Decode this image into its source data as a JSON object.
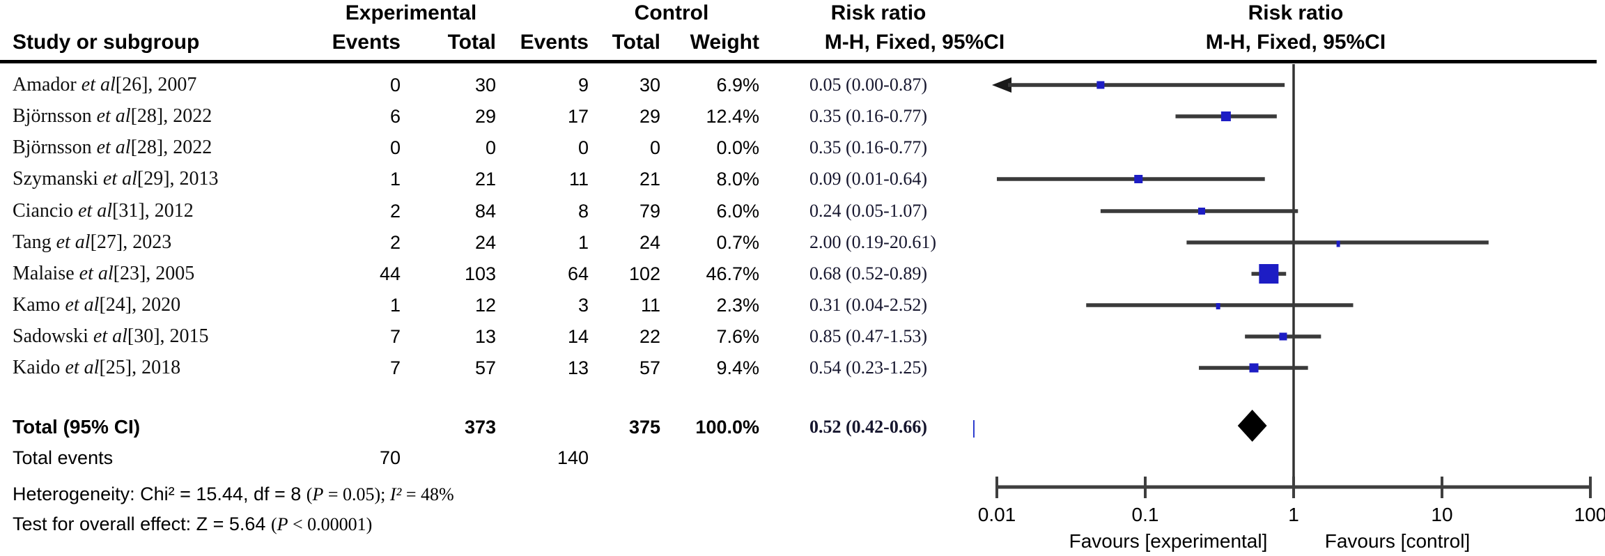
{
  "header": {
    "group_experimental": "Experimental",
    "group_control": "Control",
    "risk_ratio_col_title": "Risk ratio",
    "risk_ratio_plot_title": "Risk ratio",
    "method_col_subtitle": "M-H, Fixed, 95%CI",
    "method_plot_subtitle": "M-H, Fixed, 95%CI",
    "study_col": "Study or subgroup",
    "events_col_exp": "Events",
    "total_col_exp": "Total",
    "events_col_ctrl": "Events",
    "total_col_ctrl": "Total",
    "weight_col": "Weight"
  },
  "chart_data": {
    "type": "forest",
    "effect_measure": "Risk ratio, M-H, Fixed, 95% CI",
    "studies": [
      {
        "study": "Amador",
        "etal": "et al",
        "ref": "[26]",
        "year": "2007",
        "exp_events": "0",
        "exp_total": "30",
        "ctrl_events": "9",
        "ctrl_total": "30",
        "weight": "6.9%",
        "rr_label": "0.05 (0.00-0.87)",
        "rr": 0.05,
        "ci_low": 0.0,
        "ci_high": 0.87,
        "plotted": true
      },
      {
        "study": "Björnsson",
        "etal": "et al",
        "ref": "[28]",
        "year": "2022",
        "exp_events": "6",
        "exp_total": "29",
        "ctrl_events": "17",
        "ctrl_total": "29",
        "weight": "12.4%",
        "rr_label": "0.35 (0.16-0.77)",
        "rr": 0.35,
        "ci_low": 0.16,
        "ci_high": 0.77,
        "plotted": true
      },
      {
        "study": "Björnsson",
        "etal": "et al",
        "ref": "[28]",
        "year": "2022",
        "exp_events": "0",
        "exp_total": "0",
        "ctrl_events": "0",
        "ctrl_total": "0",
        "weight": "0.0%",
        "rr_label": "0.35 (0.16-0.77)",
        "rr": 0.35,
        "ci_low": 0.16,
        "ci_high": 0.77,
        "plotted": false
      },
      {
        "study": "Szymanski",
        "etal": "et al",
        "ref": "[29]",
        "year": "2013",
        "exp_events": "1",
        "exp_total": "21",
        "ctrl_events": "11",
        "ctrl_total": "21",
        "weight": "8.0%",
        "rr_label": "0.09 (0.01-0.64)",
        "rr": 0.09,
        "ci_low": 0.01,
        "ci_high": 0.64,
        "plotted": true
      },
      {
        "study": "Ciancio",
        "etal": "et al",
        "ref": "[31]",
        "year": "2012",
        "exp_events": "2",
        "exp_total": "84",
        "ctrl_events": "8",
        "ctrl_total": "79",
        "weight": "6.0%",
        "rr_label": "0.24 (0.05-1.07)",
        "rr": 0.24,
        "ci_low": 0.05,
        "ci_high": 1.07,
        "plotted": true
      },
      {
        "study": "Tang",
        "etal": "et al",
        "ref": "[27]",
        "year": "2023",
        "exp_events": "2",
        "exp_total": "24",
        "ctrl_events": "1",
        "ctrl_total": "24",
        "weight": "0.7%",
        "rr_label": "2.00 (0.19-20.61)",
        "rr": 2.0,
        "ci_low": 0.19,
        "ci_high": 20.61,
        "plotted": true
      },
      {
        "study": "Malaise",
        "etal": "et al",
        "ref": "[23]",
        "year": "2005",
        "exp_events": "44",
        "exp_total": "103",
        "ctrl_events": "64",
        "ctrl_total": "102",
        "weight": "46.7%",
        "rr_label": "0.68 (0.52-0.89)",
        "rr": 0.68,
        "ci_low": 0.52,
        "ci_high": 0.89,
        "plotted": true
      },
      {
        "study": "Kamo",
        "etal": "et al",
        "ref": "[24]",
        "year": "2020",
        "exp_events": "1",
        "exp_total": "12",
        "ctrl_events": "3",
        "ctrl_total": "11",
        "weight": "2.3%",
        "rr_label": "0.31 (0.04-2.52)",
        "rr": 0.31,
        "ci_low": 0.04,
        "ci_high": 2.52,
        "plotted": true
      },
      {
        "study": "Sadowski",
        "etal": "et al",
        "ref": "[30]",
        "year": "2015",
        "exp_events": "7",
        "exp_total": "13",
        "ctrl_events": "14",
        "ctrl_total": "22",
        "weight": "7.6%",
        "rr_label": "0.85 (0.47-1.53)",
        "rr": 0.85,
        "ci_low": 0.47,
        "ci_high": 1.53,
        "plotted": true
      },
      {
        "study": "Kaido",
        "etal": "et al",
        "ref": "[25]",
        "year": "2018",
        "exp_events": "7",
        "exp_total": "57",
        "ctrl_events": "13",
        "ctrl_total": "57",
        "weight": "9.4%",
        "rr_label": "0.54 (0.23-1.25)",
        "rr": 0.54,
        "ci_low": 0.23,
        "ci_high": 1.25,
        "plotted": true
      }
    ],
    "pooled": {
      "label": "Total (95% CI)",
      "exp_total": "373",
      "ctrl_total": "375",
      "weight": "100.0%",
      "rr_label": "0.52 (0.42-0.66)",
      "rr": 0.52,
      "ci_low": 0.42,
      "ci_high": 0.66
    },
    "axis": {
      "scale": "log",
      "min": 0.01,
      "max": 100,
      "ticks": [
        "0.01",
        "0.1",
        "1",
        "10",
        "100"
      ],
      "favours_left": "Favours [experimental]",
      "favours_right": "Favours [control]"
    },
    "legend_position": "none",
    "grid": false
  },
  "footer": {
    "total_events_label": "Total events",
    "total_events_exp": "70",
    "total_events_ctrl": "140",
    "het_sans": "Heterogeneity: Chi² = 15.44, df = 8 ",
    "het_open": "(",
    "het_p": "P",
    "het_after_p": " = 0.05); ",
    "het_i": "I²",
    "het_after_i": " = 48%",
    "eff_sans": "Test for overall effect: Z = 5.64 ",
    "eff_open": "(",
    "eff_p": "P",
    "eff_after_p": " < 0.00001)",
    "cursor_artifact": "|"
  },
  "colors": {
    "marker": "#1d1dc4",
    "diamond": "#000000",
    "ci_line": "#3a3a3a",
    "axis": "#3f3f3f",
    "rr_text": "#16162e",
    "artifact": "#2233cc"
  }
}
